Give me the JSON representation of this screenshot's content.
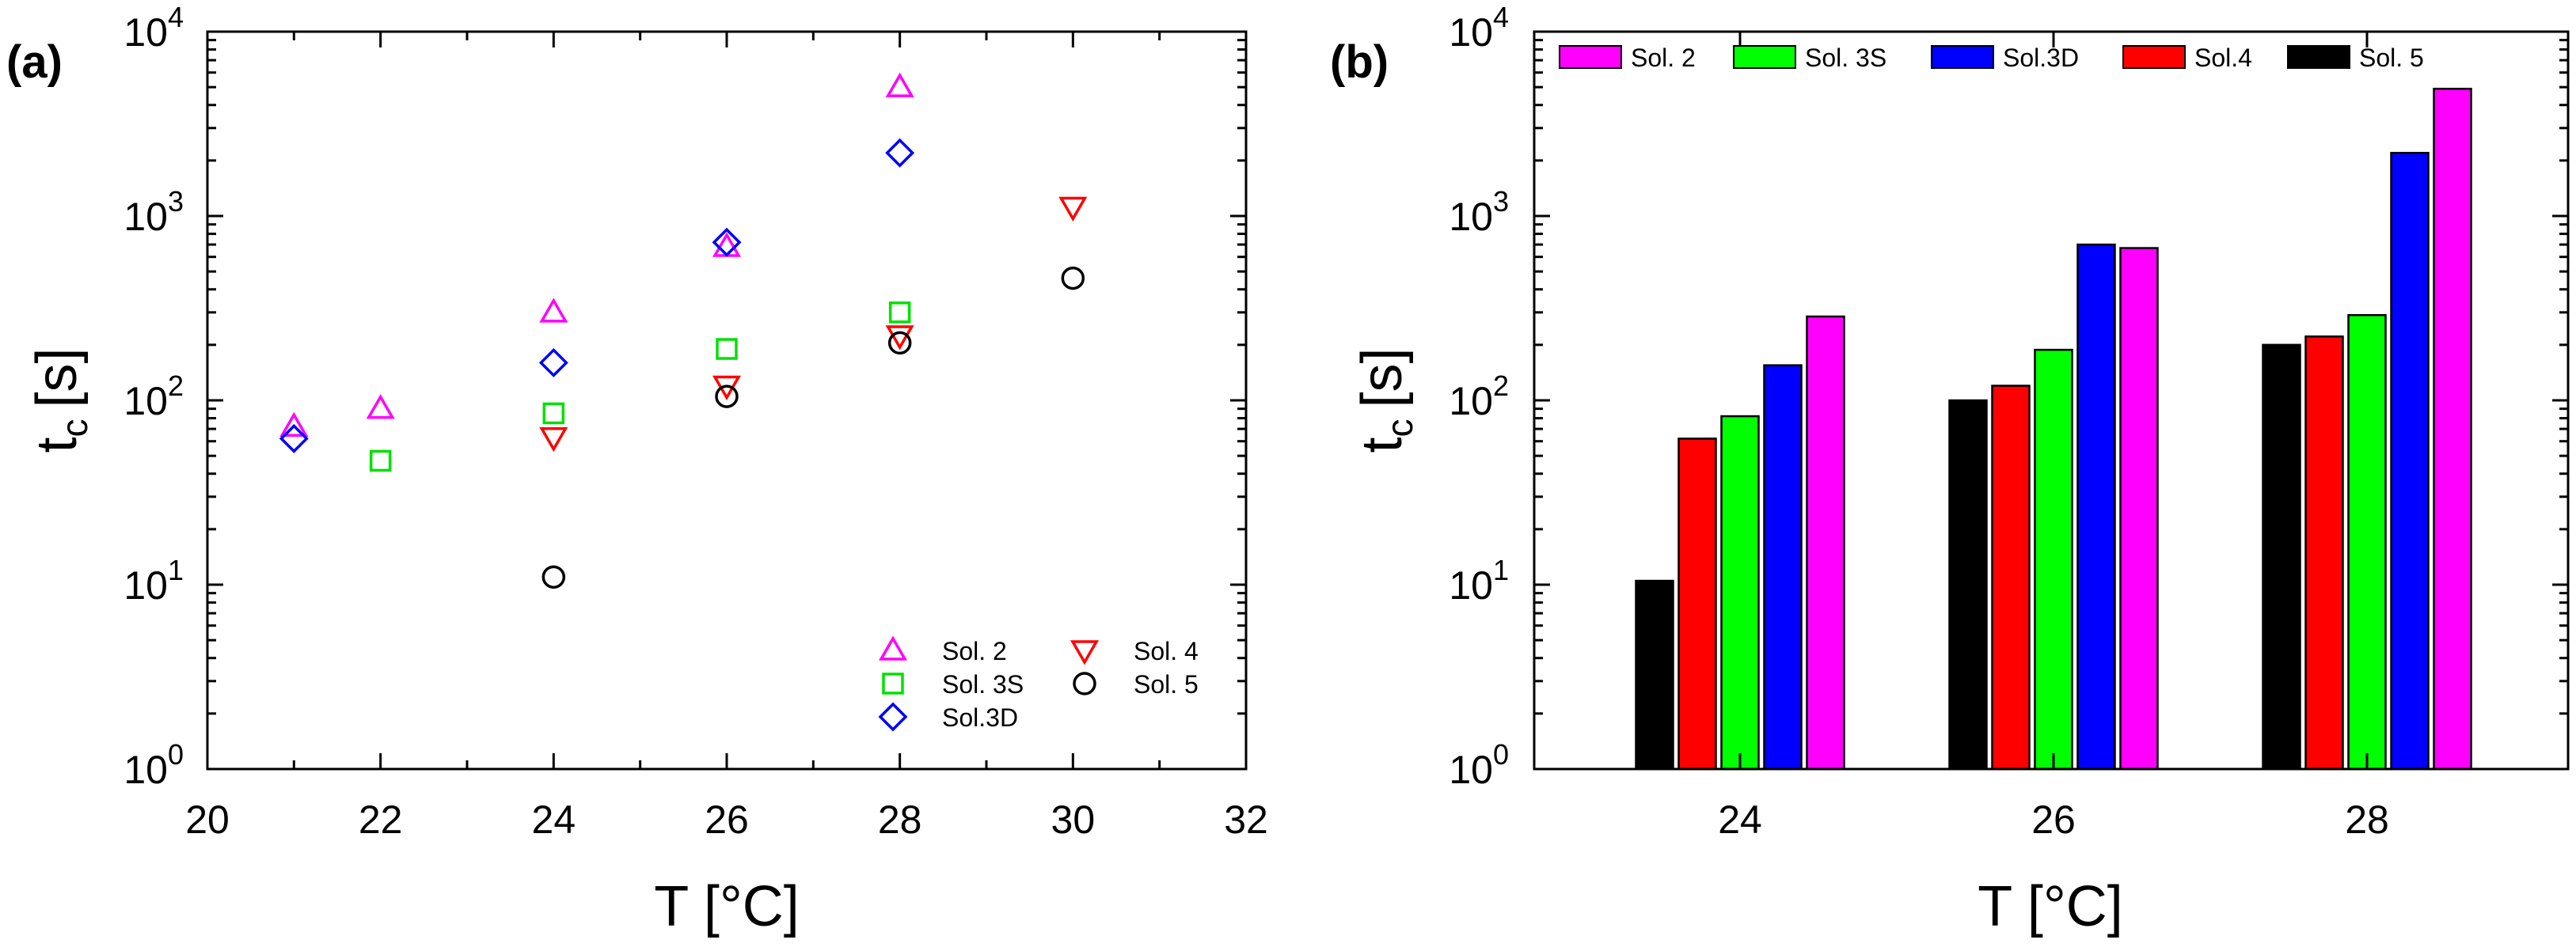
{
  "chart_data": [
    {
      "type": "scatter",
      "panel_label": "(a)",
      "xlabel": "T [°C]",
      "ylabel": "t",
      "ylabel_sub": "c",
      "ylabel_unit": "[s]",
      "xlim": [
        20,
        32
      ],
      "ylim": [
        1,
        10000
      ],
      "yscale": "log",
      "x_ticks": [
        20,
        22,
        24,
        26,
        28,
        30,
        32
      ],
      "y_ticks": [
        {
          "base": "10",
          "exp": "0",
          "value": 1
        },
        {
          "base": "10",
          "exp": "1",
          "value": 10
        },
        {
          "base": "10",
          "exp": "2",
          "value": 100
        },
        {
          "base": "10",
          "exp": "3",
          "value": 1000
        },
        {
          "base": "10",
          "exp": "4",
          "value": 10000
        }
      ],
      "legend_position": "bottom-right",
      "series": [
        {
          "name": "Sol. 2",
          "marker": "triangle-up",
          "color": "#ff00ff",
          "points": [
            [
              21,
              72
            ],
            [
              22,
              90
            ],
            [
              24,
              300
            ],
            [
              26,
              680
            ],
            [
              28,
              5000
            ]
          ]
        },
        {
          "name": "Sol. 3S",
          "marker": "square",
          "color": "#00e000",
          "points": [
            [
              22,
              47
            ],
            [
              24,
              85
            ],
            [
              26,
              190
            ],
            [
              28,
              300
            ]
          ]
        },
        {
          "name": "Sol.3D",
          "marker": "diamond",
          "color": "#0000ff",
          "points": [
            [
              21,
              62
            ],
            [
              24,
              160
            ],
            [
              26,
              720
            ],
            [
              28,
              2200
            ]
          ]
        },
        {
          "name": "Sol. 4",
          "marker": "triangle-down",
          "color": "#ff0000",
          "points": [
            [
              24,
              63
            ],
            [
              26,
              120
            ],
            [
              28,
              225
            ],
            [
              30,
              1120
            ]
          ]
        },
        {
          "name": "Sol. 5",
          "marker": "circle",
          "color": "#000000",
          "points": [
            [
              24,
              11
            ],
            [
              26,
              105
            ],
            [
              28,
              205
            ],
            [
              30,
              460
            ]
          ]
        }
      ]
    },
    {
      "type": "bar",
      "panel_label": "(b)",
      "xlabel": "T [°C]",
      "ylabel": "t",
      "ylabel_sub": "c",
      "ylabel_unit": "[s]",
      "categories": [
        "24",
        "26",
        "28"
      ],
      "ylim": [
        1,
        10000
      ],
      "yscale": "log",
      "y_ticks": [
        {
          "base": "10",
          "exp": "0",
          "value": 1
        },
        {
          "base": "10",
          "exp": "1",
          "value": 10
        },
        {
          "base": "10",
          "exp": "2",
          "value": 100
        },
        {
          "base": "10",
          "exp": "3",
          "value": 1000
        },
        {
          "base": "10",
          "exp": "4",
          "value": 10000
        }
      ],
      "legend_position": "top",
      "legend_order": [
        "Sol. 2",
        "Sol. 3S",
        "Sol.3D",
        "Sol.4",
        "Sol. 5"
      ],
      "series": [
        {
          "name": "Sol. 5",
          "color": "#000000",
          "values": [
            10.5,
            100,
            200
          ]
        },
        {
          "name": "Sol.4",
          "color": "#ff0000",
          "values": [
            62,
            120,
            222
          ]
        },
        {
          "name": "Sol. 3S",
          "color": "#00ff00",
          "values": [
            82,
            188,
            290
          ]
        },
        {
          "name": "Sol.3D",
          "color": "#0000ff",
          "values": [
            155,
            700,
            2200
          ]
        },
        {
          "name": "Sol. 2",
          "color": "#ff00ff",
          "values": [
            285,
            670,
            4900
          ]
        }
      ]
    }
  ]
}
